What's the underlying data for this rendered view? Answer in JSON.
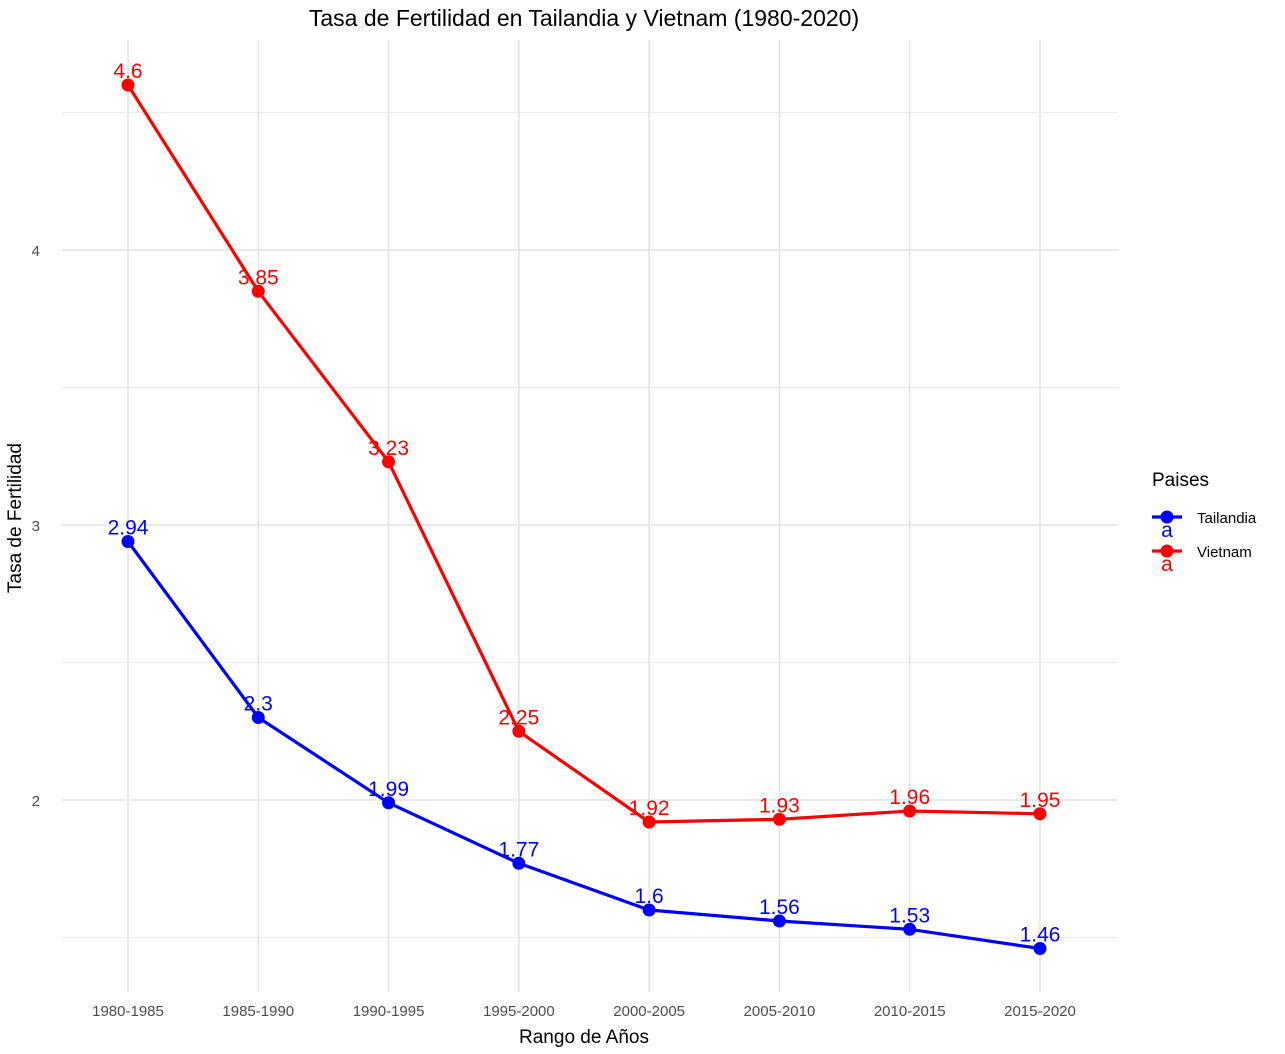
{
  "chart_data": {
    "type": "line",
    "title": "Tasa de Fertilidad en Tailandia y Vietnam (1980-2020)",
    "xlabel": "Rango de Años",
    "ylabel": "Tasa de Fertilidad",
    "categories": [
      "1980-1985",
      "1985-1990",
      "1990-1995",
      "1995-2000",
      "2000-2005",
      "2005-2010",
      "2010-2015",
      "2015-2020"
    ],
    "ylim": [
      1.31,
      4.85
    ],
    "y_ticks": [
      2,
      3,
      4
    ],
    "y_tick_labels": [
      "2",
      "3",
      "4"
    ],
    "y_minor_gridlines": [
      1.5,
      2.5,
      3.5,
      4.5
    ],
    "grid": true,
    "legend": {
      "title": "Paises",
      "placement": "right",
      "key_glyph_text": "a"
    },
    "series": [
      {
        "name": "Tailandia",
        "color": "#0000ff",
        "values": [
          2.94,
          2.3,
          1.99,
          1.77,
          1.6,
          1.56,
          1.53,
          1.46
        ],
        "labels": [
          "2.94",
          "2.3",
          "1.99",
          "1.77",
          "1.6",
          "1.56",
          "1.53",
          "1.46"
        ]
      },
      {
        "name": "Vietnam",
        "color": "#ff0000",
        "values": [
          4.6,
          3.85,
          3.23,
          2.25,
          1.92,
          1.93,
          1.96,
          1.95
        ],
        "labels": [
          "4.6",
          "3.85",
          "3.23",
          "2.25",
          "1.92",
          "1.93",
          "1.96",
          "1.95"
        ]
      }
    ]
  }
}
